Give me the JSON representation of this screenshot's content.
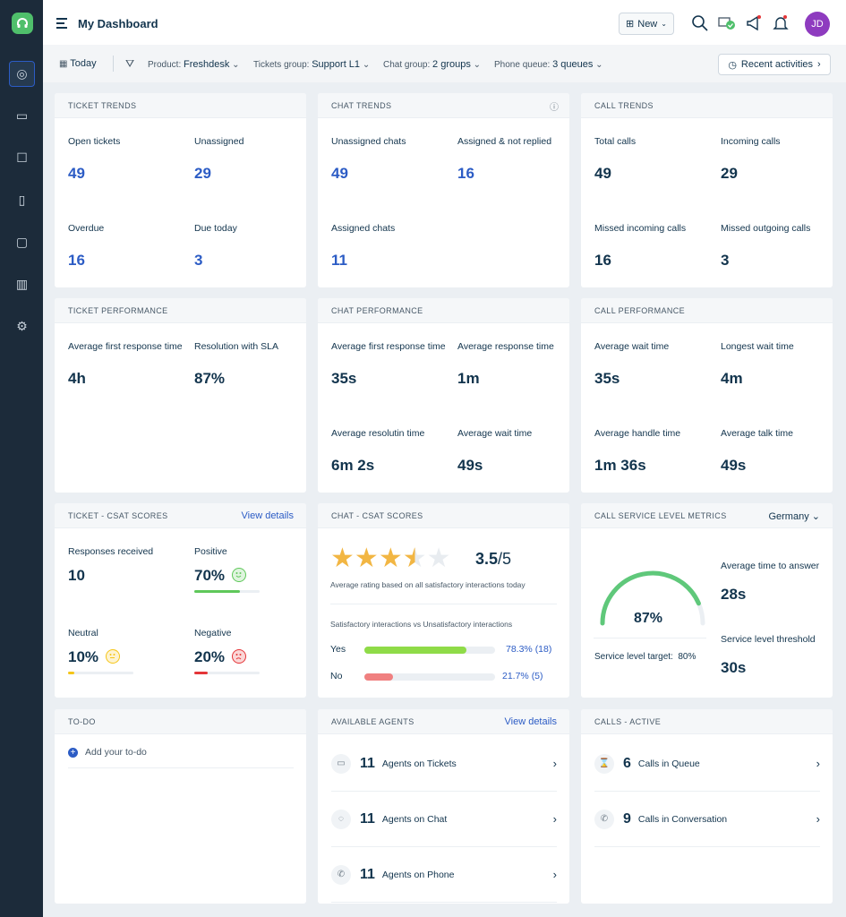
{
  "header": {
    "title": "My Dashboard",
    "new_label": "New",
    "avatar": "JD"
  },
  "filters": {
    "date": "Today",
    "product_label": "Product:",
    "product": "Freshdesk",
    "tickets_label": "Tickets group:",
    "tickets": "Support L1",
    "chat_label": "Chat group:",
    "chat": "2 groups",
    "phone_label": "Phone queue:",
    "phone": "3 queues",
    "recent": "Recent activities"
  },
  "sidebar": {
    "items": [
      "dashboard-icon",
      "tickets-icon",
      "contacts-icon",
      "knowledge-base-icon",
      "conversations-icon",
      "reports-icon",
      "settings-icon"
    ]
  },
  "ticket_trends": {
    "title": "Ticket Trends",
    "metrics": [
      {
        "label": "Open tickets",
        "value": "49"
      },
      {
        "label": "Unassigned",
        "value": "29"
      },
      {
        "label": "Overdue",
        "value": "16"
      },
      {
        "label": "Due today",
        "value": "3"
      }
    ]
  },
  "chat_trends": {
    "title": "Chat Trends",
    "metrics": [
      {
        "label": "Unassigned chats",
        "value": "49"
      },
      {
        "label": "Assigned & not replied",
        "value": "16"
      },
      {
        "label": "Assigned chats",
        "value": "11"
      }
    ]
  },
  "call_trends": {
    "title": "Call Trends",
    "metrics": [
      {
        "label": "Total calls",
        "value": "49"
      },
      {
        "label": "Incoming calls",
        "value": "29"
      },
      {
        "label": "Missed incoming calls",
        "value": "16"
      },
      {
        "label": "Missed outgoing calls",
        "value": "3"
      }
    ]
  },
  "ticket_perf": {
    "title": "Ticket Performance",
    "metrics": [
      {
        "label": "Average first response time",
        "value": "4h"
      },
      {
        "label": "Resolution with SLA",
        "value": "87%"
      }
    ]
  },
  "chat_perf": {
    "title": "Chat Performance",
    "metrics": [
      {
        "label": "Average first response time",
        "value": "35s"
      },
      {
        "label": "Average response time",
        "value": "1m"
      },
      {
        "label": "Average resolutin time",
        "value": "6m 2s"
      },
      {
        "label": "Average wait time",
        "value": "49s"
      }
    ]
  },
  "call_perf": {
    "title": "Call Performance",
    "metrics": [
      {
        "label": "Average wait time",
        "value": "35s"
      },
      {
        "label": "Longest wait time",
        "value": "4m"
      },
      {
        "label": "Average handle time",
        "value": "1m 36s"
      },
      {
        "label": "Average talk time",
        "value": "49s"
      }
    ]
  },
  "ticket_csat": {
    "title": "Ticket - CSAT Scores",
    "link": "View details",
    "metrics": [
      {
        "label": "Responses received",
        "value": "10"
      },
      {
        "label": "Positive",
        "value": "70%",
        "pct": 70,
        "color": "#5fc85a",
        "emoji": "happy"
      },
      {
        "label": "Neutral",
        "value": "10%",
        "pct": 10,
        "color": "#f5c518",
        "emoji": "neutral"
      },
      {
        "label": "Negative",
        "value": "20%",
        "pct": 20,
        "color": "#e43538",
        "emoji": "sad"
      }
    ]
  },
  "chat_csat": {
    "title": "Chat - CSAT Scores",
    "rating": "3.5",
    "rating_out_of": "/5",
    "rating_value": 3.5,
    "rating_note": "Average rating based on all satisfactory interactions today",
    "compare_label": "Satisfactory interactions vs Unsatisfactory interactions",
    "bars": [
      {
        "label": "Yes",
        "text": "78.3% (18)",
        "pct": 78.3,
        "color": "#8fdb48"
      },
      {
        "label": "No",
        "text": "21.7% (5)",
        "pct": 21.7,
        "color": "#f08080"
      }
    ]
  },
  "call_sl": {
    "title": "Call Service Level Metrics",
    "region": "Germany",
    "gauge": "87%",
    "gauge_value": 87,
    "target": "Service level target:  80%",
    "avg_label": "Average time to answer",
    "avg": "28s",
    "thr_label": "Service level threshold",
    "thr": "30s"
  },
  "todo": {
    "title": "To-do",
    "add": "Add your to-do"
  },
  "agents": {
    "title": "Available Agents",
    "link": "View details",
    "rows": [
      {
        "num": "11",
        "label": "Agents on Tickets",
        "icon": "ticket-icon"
      },
      {
        "num": "11",
        "label": "Agents on Chat",
        "icon": "chat-icon"
      },
      {
        "num": "11",
        "label": "Agents on Phone",
        "icon": "phone-icon"
      }
    ]
  },
  "calls_active": {
    "title": "Calls - Active",
    "rows": [
      {
        "num": "6",
        "label": "Calls in Queue",
        "icon": "hourglass-icon"
      },
      {
        "num": "9",
        "label": "Calls in Conversation",
        "icon": "phone-icon"
      }
    ]
  },
  "colors": {
    "accent": "#2c5cc5",
    "sidebar": "#1c2b3a",
    "gauge": "#5fc87a",
    "star": "#f2b643"
  }
}
